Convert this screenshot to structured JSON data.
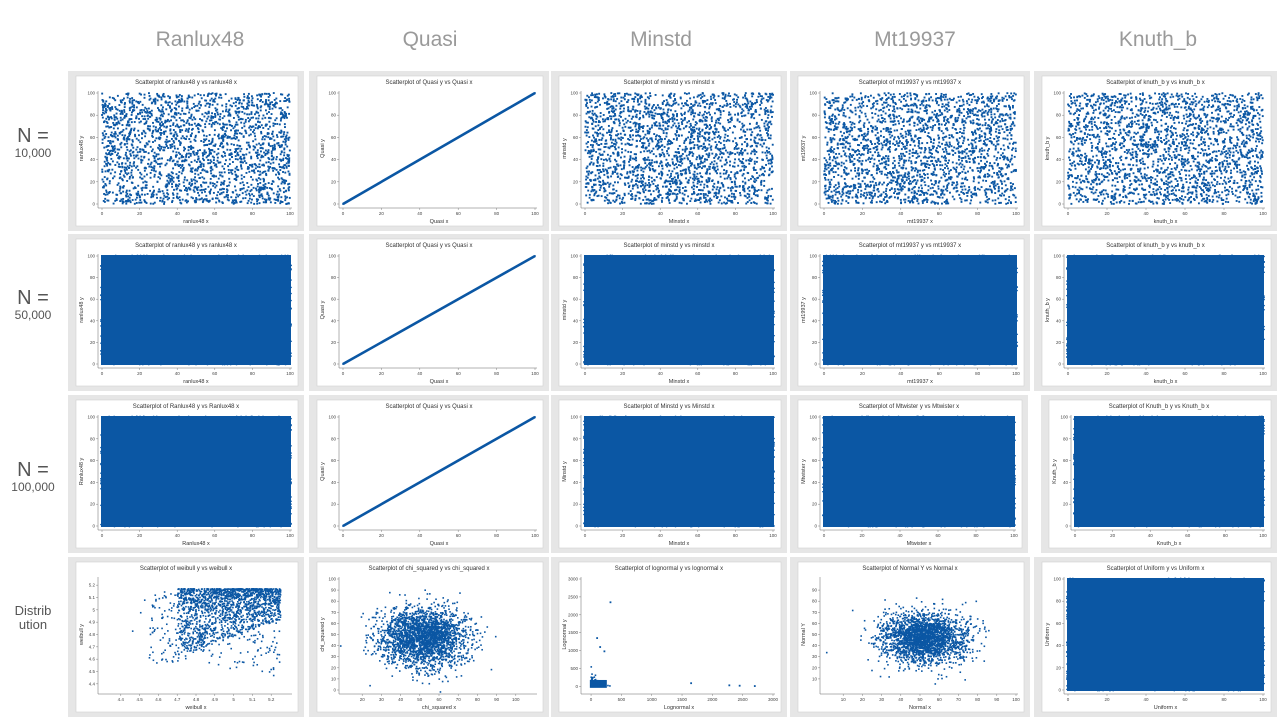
{
  "columns": [
    "Ranlux48",
    "Quasi",
    "Minstd",
    "Mt19937",
    "Knuth_b"
  ],
  "rows": [
    {
      "label_top": "N =",
      "label_bottom": "10,000"
    },
    {
      "label_top": "N =",
      "label_bottom": "50,000"
    },
    {
      "label_top": "N =",
      "label_bottom": "100,000"
    },
    {
      "label_top": "Distrib",
      "label_bottom": "ution"
    }
  ],
  "colors": {
    "marker": "#0b57a4",
    "panel_bg": "#e6e6e6",
    "plot_bg": "#ffffff"
  },
  "chart_data": [
    {
      "type": "scatter",
      "pattern": "uniform",
      "density": "sparse",
      "title": "Scatterplot of ranlux48 y vs ranlux48 x",
      "xlabel": "ranlux48 x",
      "ylabel": "ranlux48 y",
      "xlim": [
        0,
        100
      ],
      "ylim": [
        0,
        100
      ],
      "xticks": [
        0,
        20,
        40,
        60,
        80,
        100
      ],
      "yticks": [
        0,
        20,
        40,
        60,
        80,
        100
      ]
    },
    {
      "type": "scatter",
      "pattern": "diagonal",
      "title": "Scatterplot of Quasi y vs Quasi x",
      "xlabel": "Quasi x",
      "ylabel": "Quasi y",
      "xlim": [
        0,
        100
      ],
      "ylim": [
        0,
        100
      ],
      "xticks": [
        0,
        20,
        40,
        60,
        80,
        100
      ],
      "yticks": [
        0,
        20,
        40,
        60,
        80,
        100
      ]
    },
    {
      "type": "scatter",
      "pattern": "uniform",
      "density": "sparse",
      "title": "Scatterplot of minstd y vs minstd x",
      "xlabel": "Minstd x",
      "ylabel": "minstd y",
      "xlim": [
        0,
        100
      ],
      "ylim": [
        0,
        100
      ],
      "xticks": [
        0,
        20,
        40,
        60,
        80,
        100
      ],
      "yticks": [
        0,
        20,
        40,
        60,
        80,
        100
      ]
    },
    {
      "type": "scatter",
      "pattern": "uniform",
      "density": "sparse",
      "title": "Scatterplot of mt19937 y vs mt19937 x",
      "xlabel": "mt19937 x",
      "ylabel": "mt19937 y",
      "xlim": [
        0,
        100
      ],
      "ylim": [
        0,
        100
      ],
      "xticks": [
        0,
        20,
        40,
        60,
        80,
        100
      ],
      "yticks": [
        0,
        20,
        40,
        60,
        80,
        100
      ]
    },
    {
      "type": "scatter",
      "pattern": "uniform",
      "density": "sparse",
      "title": "Scatterplot of knuth_b y vs knuth_b x",
      "xlabel": "knuth_b x",
      "ylabel": "knuth_b y",
      "xlim": [
        0,
        100
      ],
      "ylim": [
        0,
        100
      ],
      "xticks": [
        0,
        20,
        40,
        60,
        80,
        100
      ],
      "yticks": [
        0,
        20,
        40,
        60,
        80,
        100
      ]
    },
    {
      "type": "scatter",
      "pattern": "uniform",
      "density": "dense",
      "title": "Scatterplot of ranlux48 y vs ranlux48 x",
      "xlabel": "ranlux48 x",
      "ylabel": "ranlux48 y",
      "xlim": [
        0,
        100
      ],
      "ylim": [
        0,
        100
      ],
      "xticks": [
        0,
        20,
        40,
        60,
        80,
        100
      ],
      "yticks": [
        0,
        20,
        40,
        60,
        80,
        100
      ]
    },
    {
      "type": "scatter",
      "pattern": "diagonal",
      "title": "Scatterplot of Quasi y vs Quasi x",
      "xlabel": "Quasi x",
      "ylabel": "Quasi y",
      "xlim": [
        0,
        100
      ],
      "ylim": [
        0,
        100
      ],
      "xticks": [
        0,
        20,
        40,
        60,
        80,
        100
      ],
      "yticks": [
        0,
        20,
        40,
        60,
        80,
        100
      ]
    },
    {
      "type": "scatter",
      "pattern": "uniform",
      "density": "dense",
      "title": "Scatterplot of minstd y vs minstd x",
      "xlabel": "Minstd x",
      "ylabel": "minstd y",
      "xlim": [
        0,
        100
      ],
      "ylim": [
        0,
        100
      ],
      "xticks": [
        0,
        20,
        40,
        60,
        80,
        100
      ],
      "yticks": [
        0,
        20,
        40,
        60,
        80,
        100
      ]
    },
    {
      "type": "scatter",
      "pattern": "uniform",
      "density": "dense",
      "title": "Scatterplot of mt19937 y vs mt19937 x",
      "xlabel": "mt19937 x",
      "ylabel": "mt19937 y",
      "xlim": [
        0,
        100
      ],
      "ylim": [
        0,
        100
      ],
      "xticks": [
        0,
        20,
        40,
        60,
        80,
        100
      ],
      "yticks": [
        0,
        20,
        40,
        60,
        80,
        100
      ]
    },
    {
      "type": "scatter",
      "pattern": "uniform",
      "density": "dense",
      "title": "Scatterplot of knuth_b y vs knuth_b x",
      "xlabel": "knuth_b x",
      "ylabel": "knuth_b y",
      "xlim": [
        0,
        100
      ],
      "ylim": [
        0,
        100
      ],
      "xticks": [
        0,
        20,
        40,
        60,
        80,
        100
      ],
      "yticks": [
        0,
        20,
        40,
        60,
        80,
        100
      ]
    },
    {
      "type": "scatter",
      "pattern": "uniform",
      "density": "dense",
      "title": "Scatterplot of Ranlux48 y vs Ranlux48 x",
      "xlabel": "Ranlux48 x",
      "ylabel": "Ranlux48 y",
      "xlim": [
        0,
        100
      ],
      "ylim": [
        0,
        100
      ],
      "xticks": [
        0,
        20,
        40,
        60,
        80,
        100
      ],
      "yticks": [
        0,
        20,
        40,
        60,
        80,
        100
      ]
    },
    {
      "type": "scatter",
      "pattern": "diagonal",
      "title": "Scatterplot of Quasi y vs Quasi x",
      "xlabel": "Quasi x",
      "ylabel": "Quasi y",
      "xlim": [
        0,
        100
      ],
      "ylim": [
        0,
        100
      ],
      "xticks": [
        0,
        20,
        40,
        60,
        80,
        100
      ],
      "yticks": [
        0,
        20,
        40,
        60,
        80,
        100
      ]
    },
    {
      "type": "scatter",
      "pattern": "uniform",
      "density": "dense",
      "title": "Scatterplot of Minstd y vs Minstd x",
      "xlabel": "Minstd x",
      "ylabel": "Minstd y",
      "xlim": [
        0,
        100
      ],
      "ylim": [
        0,
        100
      ],
      "xticks": [
        0,
        20,
        40,
        60,
        80,
        100
      ],
      "yticks": [
        0,
        20,
        40,
        60,
        80,
        100
      ]
    },
    {
      "type": "scatter",
      "pattern": "uniform",
      "density": "dense",
      "title": "Scatterplot of Mtwister y vs Mtwister x",
      "xlabel": "Mtwister x",
      "ylabel": "Mtwister y",
      "xlim": [
        0,
        100
      ],
      "ylim": [
        0,
        100
      ],
      "xticks": [
        0,
        20,
        40,
        60,
        80,
        100
      ],
      "yticks": [
        0,
        20,
        40,
        60,
        80,
        100
      ]
    },
    {
      "type": "scatter",
      "pattern": "uniform",
      "density": "dense",
      "title": "Scatterplot of Knuth_b y vs Knuth_b x",
      "xlabel": "Knuth_b x",
      "ylabel": "Knuth_b y",
      "xlim": [
        0,
        100
      ],
      "ylim": [
        0,
        100
      ],
      "xticks": [
        0,
        20,
        40,
        60,
        80,
        100
      ],
      "yticks": [
        0,
        20,
        40,
        60,
        80,
        100
      ]
    },
    {
      "type": "scatter",
      "pattern": "weibull",
      "title": "Scatterplot of weibull y vs weibull x",
      "xlabel": "weibull x",
      "ylabel": "weibull y",
      "xlim": [
        4.3,
        5.3
      ],
      "ylim": [
        4.35,
        5.25
      ],
      "xticks": [
        4.4,
        4.5,
        4.6,
        4.7,
        4.8,
        4.9,
        5.0,
        5.1,
        5.2
      ],
      "yticks": [
        4.4,
        4.5,
        4.6,
        4.7,
        4.8,
        4.9,
        5.0,
        5.1,
        5.2
      ]
    },
    {
      "type": "scatter",
      "pattern": "chisq",
      "title": "Scatterplot of chi_squared y vs chi_squared x",
      "xlabel": "chi_squared x",
      "ylabel": "chi_squared y",
      "xlim": [
        10,
        110
      ],
      "ylim": [
        0,
        100
      ],
      "xticks": [
        20,
        30,
        40,
        50,
        60,
        70,
        80,
        90,
        100
      ],
      "yticks": [
        0,
        10,
        20,
        30,
        40,
        50,
        60,
        70,
        80,
        90,
        100
      ]
    },
    {
      "type": "scatter",
      "pattern": "lognormal",
      "title": "Scatterplot of lognormal y vs lognormal x",
      "xlabel": "Lognormal x",
      "ylabel": "Lognormal y",
      "xlim": [
        -100,
        3000
      ],
      "ylim": [
        -100,
        3000
      ],
      "xticks": [
        0,
        500,
        1000,
        1500,
        2000,
        2500,
        3000
      ],
      "yticks": [
        0,
        500,
        1000,
        1500,
        2000,
        2500,
        3000
      ]
    },
    {
      "type": "scatter",
      "pattern": "normal",
      "title": "Scatterplot of Normal Y vs Normal x",
      "xlabel": "Normal x",
      "ylabel": "Normal Y",
      "xlim": [
        0,
        100
      ],
      "ylim": [
        0,
        100
      ],
      "xticks": [
        10,
        20,
        30,
        40,
        50,
        60,
        70,
        80,
        90,
        100
      ],
      "yticks": [
        10,
        20,
        30,
        40,
        50,
        60,
        70,
        80,
        90
      ]
    },
    {
      "type": "scatter",
      "pattern": "uniform",
      "density": "dense",
      "title": "Scatterplot of Uniform y vs Uniform x",
      "xlabel": "Uniform x",
      "ylabel": "Uniform y",
      "xlim": [
        0,
        100
      ],
      "ylim": [
        0,
        100
      ],
      "xticks": [
        0,
        20,
        40,
        60,
        80,
        100
      ],
      "yticks": [
        0,
        20,
        40,
        60,
        80,
        100
      ]
    }
  ]
}
